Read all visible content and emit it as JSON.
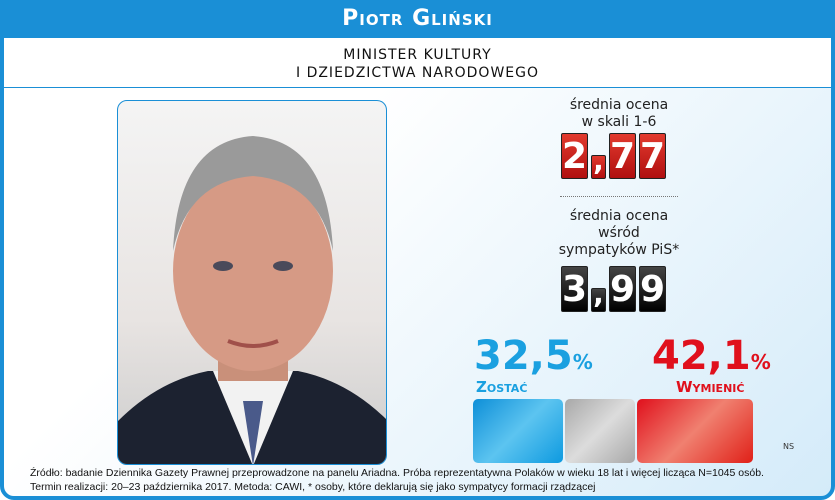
{
  "header": {
    "title": "Piotr Gliński"
  },
  "subtitle": {
    "line1": "MINISTER KULTURY",
    "line2": "I DZIEDZICTWA NARODOWEGO"
  },
  "rating": {
    "label1": "średnia ocena",
    "label2": "w skali 1-6",
    "digits": [
      "2",
      ",",
      "7",
      "7"
    ]
  },
  "supporters": {
    "label1": "średnia ocena",
    "label2": "wśród",
    "label3": "sympatyków PiS*",
    "digits": [
      "3",
      ",",
      "9",
      "9"
    ]
  },
  "stay": {
    "value": "32,5",
    "unit": "%",
    "label": "Zostać",
    "color": "#1aa0e0",
    "percent": 32.5
  },
  "replace": {
    "value": "42,1",
    "unit": "%",
    "label": "Wymienić",
    "color": "#e0101c",
    "percent": 42.1
  },
  "neutral_color": "#bbbbbb",
  "ns": "NS",
  "footer": {
    "line1": "Źródło: badanie Dziennika Gazety Prawnej przeprowadzone na panelu Ariadna. Próba reprezentatywna Polaków w wieku 18 lat i więcej licząca N=1045 osób.",
    "line2": "Termin realizacji: 20–23 października 2017. Metoda: CAWI, * osoby, które deklarują się jako sympatycy formacji rządzącej"
  }
}
